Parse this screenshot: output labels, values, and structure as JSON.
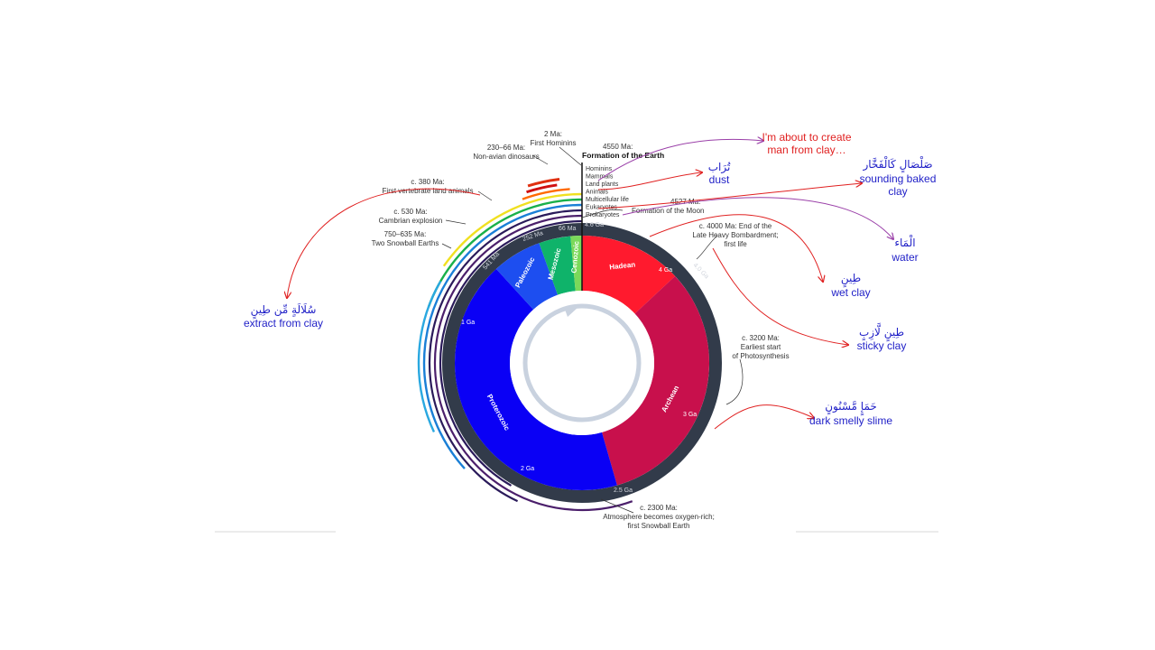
{
  "colors": {
    "hadean": "#ff1a2e",
    "archean": "#c8104c",
    "proterozoic": "#0a00f5",
    "paleozoic": "#1d4ef0",
    "mesozoic": "#0fb36a",
    "cenozoic": "#7ad95a",
    "ring": "#323b4a",
    "annotation": "#e02020",
    "arabic": "#1f1fc7"
  },
  "eons": {
    "hadean": "Hadean",
    "archean": "Archean",
    "proterozoic": "Proterozoic",
    "paleozoic": "Paleozoic",
    "mesozoic": "Mesozoic",
    "cenozoic": "Cenozoic"
  },
  "ring_labels": {
    "t4_6": "4.6 Ga",
    "t4_0": "4.0 Ga",
    "t2_5": "2.5 Ga",
    "t541": "541 Ma",
    "t252": "252 Ma",
    "t66": "66 Ma"
  },
  "inner_labels": {
    "g4": "4 Ga",
    "g3": "3 Ga",
    "g2": "2 Ga",
    "g1": "1 Ga"
  },
  "events": {
    "formation_date": "4550 Ma:",
    "formation_title": "Formation of the Earth",
    "hominins_date": "2 Ma:",
    "hominins": "First Hominins",
    "dinos_date": "230–66 Ma:",
    "dinos": "Non-avian dinosaurs",
    "land_date": "c. 380 Ma:",
    "land": "First vertebrate land animals",
    "cambrian_date": "c. 530 Ma:",
    "cambrian": "Cambrian explosion",
    "snowball_date": "750–635 Ma:",
    "snowball": "Two Snowball Earths",
    "moon_date": "4527 Ma:",
    "moon": "Formation of the Moon",
    "lhb_line1": "c. 4000 Ma: End of the",
    "lhb_line2": "Late Heavy Bombardment;",
    "lhb_line3": "first life",
    "photo_line1": "c. 3200 Ma:",
    "photo_line2": "Earliest start",
    "photo_line3": "of Photosynthesis",
    "oxy_line1": "c. 2300 Ma:",
    "oxy_line2": "Atmosphere becomes oxygen-rich;",
    "oxy_line3": "first Snowball Earth"
  },
  "life_list": [
    "Hominins",
    "Mammals",
    "Land plants",
    "Animals",
    "Multicellular life",
    "Eukaryotes",
    "Prokaryotes"
  ],
  "annotations": {
    "create_line1": "I'm about to create",
    "create_line2": "man from clay…",
    "turab_ar": "تُرَاب",
    "turab_en": "dust",
    "salsal_ar": "صَلْصَالٍ كَالْفَخَّار",
    "salsal_en1": "sounding baked",
    "salsal_en2": "clay",
    "maa_ar": "الْمَاء",
    "maa_en": "water",
    "tin_ar": "طِينٍ",
    "tin_en": "wet clay",
    "lazib_ar": "طِينٍ لَّازِبٍ",
    "lazib_en": "sticky clay",
    "hama_ar": "حَمَإٍ مَّسْنُونٍ",
    "hama_en": "dark smelly slime",
    "sulala_ar": "سُلَالَةٍ مِّن طِينٍ",
    "sulala_en": "extract from clay"
  }
}
